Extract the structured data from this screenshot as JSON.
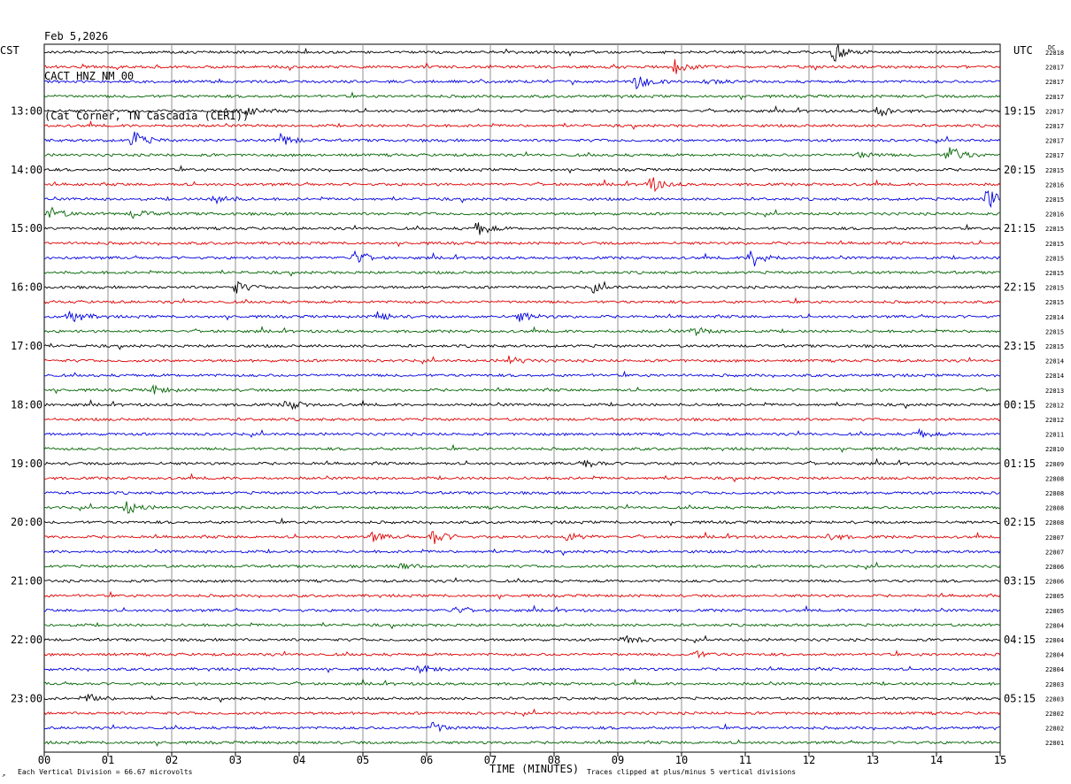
{
  "header": {
    "date": "Feb 5,2026",
    "station": "CACT HNZ NM 00",
    "location": "(Cat Corner, TN Cascadia (CERI))"
  },
  "axes": {
    "left_tz": "CST",
    "right_tz": "UTC",
    "dc_label": "DC",
    "xlabel": "TIME (MINUTES)",
    "scale_note": "Each Vertical Division =   66.67 microvolts",
    "clip_note": "Traces clipped at plus/minus 5 vertical divisions"
  },
  "chart_data": {
    "type": "line",
    "subtype": "helicorder",
    "minutes_per_line": 15,
    "x_ticks": [
      "00",
      "01",
      "02",
      "03",
      "04",
      "05",
      "06",
      "07",
      "08",
      "09",
      "10",
      "11",
      "12",
      "13",
      "14",
      "15"
    ],
    "left_hour_labels": [
      "13:00",
      "14:00",
      "15:00",
      "16:00",
      "17:00",
      "18:00",
      "19:00",
      "20:00",
      "21:00",
      "22:00",
      "23:00"
    ],
    "right_hour_labels": [
      "19:15",
      "20:15",
      "21:15",
      "22:15",
      "23:15",
      "00:15",
      "01:15",
      "02:15",
      "03:15",
      "04:15",
      "05:15"
    ],
    "trace_colors": [
      "#000000",
      "#e00000",
      "#0000e0",
      "#006400"
    ],
    "dc_values": [
      "22818",
      "22817",
      "22817",
      "22817",
      "22817",
      "22817",
      "22817",
      "22817",
      "22815",
      "22816",
      "22815",
      "22816",
      "22815",
      "22815",
      "22815",
      "22815",
      "22815",
      "22815",
      "22814",
      "22815",
      "22815",
      "22814",
      "22814",
      "22813",
      "22812",
      "22812",
      "22811",
      "22810",
      "22809",
      "22808",
      "22808",
      "22808",
      "22808",
      "22807",
      "22807",
      "22806",
      "22806",
      "22805",
      "22805",
      "22804",
      "22804",
      "22804",
      "22804",
      "22803",
      "22803",
      "22802",
      "22802",
      "22801"
    ],
    "events": [
      {
        "line": 0,
        "minute": 12.4,
        "amp": 10
      },
      {
        "line": 1,
        "minute": 9.9,
        "amp": 8
      },
      {
        "line": 2,
        "minute": 9.3,
        "amp": 9
      },
      {
        "line": 2,
        "minute": 10.4,
        "amp": 4
      },
      {
        "line": 4,
        "minute": 3.1,
        "amp": 8
      },
      {
        "line": 4,
        "minute": 13.1,
        "amp": 7
      },
      {
        "line": 6,
        "minute": 1.4,
        "amp": 10
      },
      {
        "line": 6,
        "minute": 3.7,
        "amp": 8
      },
      {
        "line": 7,
        "minute": 14.2,
        "amp": 12
      },
      {
        "line": 7,
        "minute": 12.8,
        "amp": 4
      },
      {
        "line": 9,
        "minute": 9.5,
        "amp": 10
      },
      {
        "line": 10,
        "minute": 2.7,
        "amp": 7
      },
      {
        "line": 10,
        "minute": 14.8,
        "amp": 14
      },
      {
        "line": 11,
        "minute": 0.1,
        "amp": 7
      },
      {
        "line": 11,
        "minute": 1.4,
        "amp": 5
      },
      {
        "line": 12,
        "minute": 6.8,
        "amp": 8
      },
      {
        "line": 14,
        "minute": 4.85,
        "amp": 8
      },
      {
        "line": 14,
        "minute": 11.1,
        "amp": 12
      },
      {
        "line": 16,
        "minute": 3.0,
        "amp": 7
      },
      {
        "line": 16,
        "minute": 8.6,
        "amp": 5
      },
      {
        "line": 18,
        "minute": 0.4,
        "amp": 9
      },
      {
        "line": 18,
        "minute": 5.2,
        "amp": 6
      },
      {
        "line": 18,
        "minute": 7.45,
        "amp": 6
      },
      {
        "line": 19,
        "minute": 10.2,
        "amp": 5
      },
      {
        "line": 21,
        "minute": 7.3,
        "amp": 5
      },
      {
        "line": 23,
        "minute": 1.7,
        "amp": 5
      },
      {
        "line": 24,
        "minute": 3.8,
        "amp": 6
      },
      {
        "line": 26,
        "minute": 13.7,
        "amp": 5
      },
      {
        "line": 28,
        "minute": 8.5,
        "amp": 5
      },
      {
        "line": 31,
        "minute": 1.3,
        "amp": 7
      },
      {
        "line": 33,
        "minute": 6.1,
        "amp": 9
      },
      {
        "line": 33,
        "minute": 5.15,
        "amp": 5
      },
      {
        "line": 33,
        "minute": 8.2,
        "amp": 5
      },
      {
        "line": 33,
        "minute": 12.3,
        "amp": 5
      },
      {
        "line": 35,
        "minute": 5.6,
        "amp": 4
      },
      {
        "line": 38,
        "minute": 6.4,
        "amp": 4
      },
      {
        "line": 40,
        "minute": 9.1,
        "amp": 6
      },
      {
        "line": 41,
        "minute": 10.2,
        "amp": 4
      },
      {
        "line": 42,
        "minute": 5.9,
        "amp": 5
      },
      {
        "line": 44,
        "minute": 0.7,
        "amp": 5
      },
      {
        "line": 46,
        "minute": 6.1,
        "amp": 6
      }
    ]
  }
}
